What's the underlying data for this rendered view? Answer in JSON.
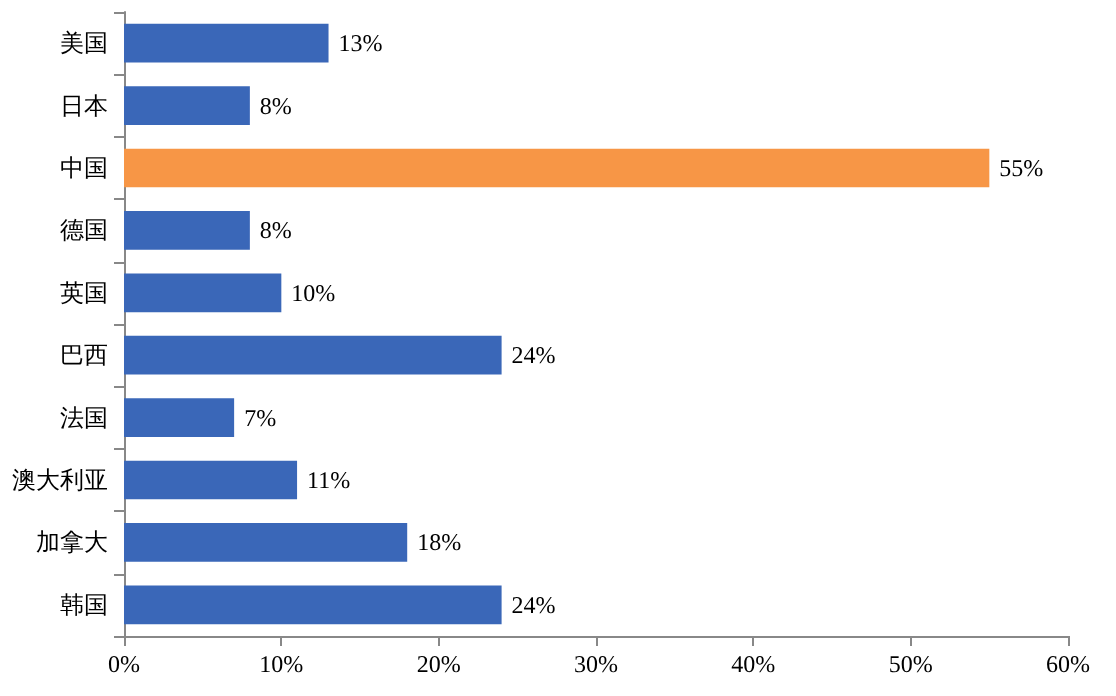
{
  "chart_data": {
    "type": "bar",
    "orientation": "horizontal",
    "categories": [
      "美国",
      "日本",
      "中国",
      "德国",
      "英国",
      "巴西",
      "法国",
      "澳大利亚",
      "加拿大",
      "韩国"
    ],
    "values": [
      13,
      8,
      55,
      8,
      10,
      24,
      7,
      11,
      18,
      24
    ],
    "colors": [
      "#3a67b8",
      "#3a67b8",
      "#f79646",
      "#3a67b8",
      "#3a67b8",
      "#3a67b8",
      "#3a67b8",
      "#3a67b8",
      "#3a67b8",
      "#3a67b8"
    ],
    "value_labels": [
      "13%",
      "8%",
      "55%",
      "8%",
      "10%",
      "24%",
      "7%",
      "11%",
      "18%",
      "24%"
    ],
    "xlim": [
      0,
      60
    ],
    "xticks": [
      {
        "value": 0,
        "label": "0%"
      },
      {
        "value": 10,
        "label": "10%"
      },
      {
        "value": 20,
        "label": "20%"
      },
      {
        "value": 30,
        "label": "30%"
      },
      {
        "value": 40,
        "label": "40%"
      },
      {
        "value": 50,
        "label": "50%"
      },
      {
        "value": 60,
        "label": "60%"
      }
    ],
    "grid": false
  }
}
